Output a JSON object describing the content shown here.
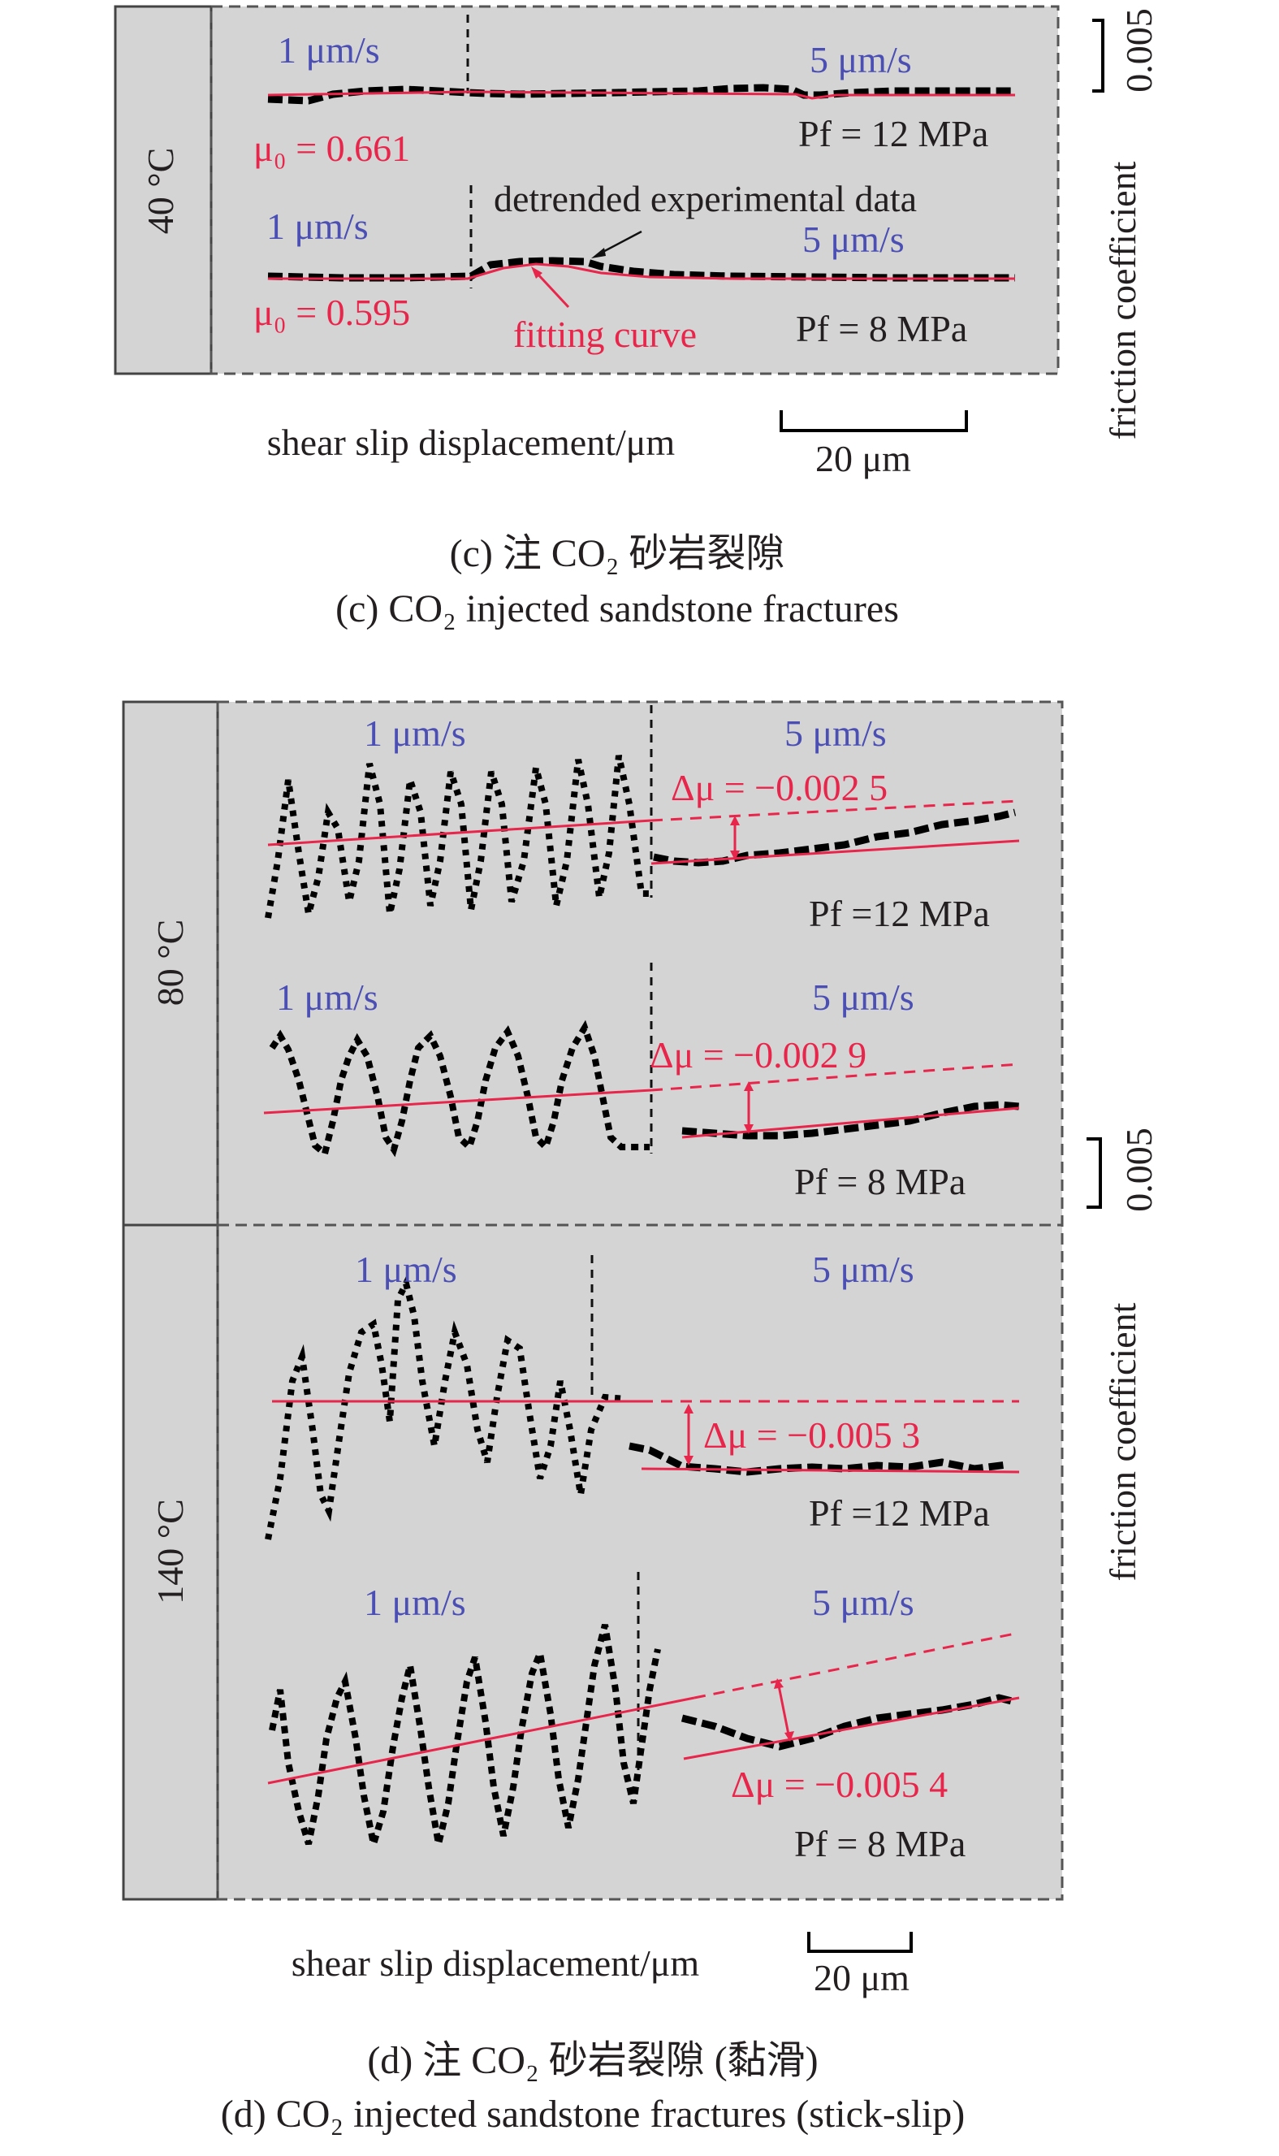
{
  "panel_c": {
    "temp_label": "40 °C",
    "caption_cn": "(c) 注 CO₂ 砂岩裂隙",
    "caption_en": "(c) CO₂ injected sandstone fractures",
    "x_axis_label": "shear slip displacement/μm",
    "y_axis_label": "friction coefficient",
    "y_scale_label": "0.005",
    "x_scale_label": "20 μm",
    "annotation_data": "detrended experimental data",
    "annotation_fit": "fitting curve",
    "rows": [
      {
        "v1": "1 μm/s",
        "v2": "5 μm/s",
        "mu0": "μ₀ = 0.661",
        "pf": "Pf = 12 MPa"
      },
      {
        "v1": "1 μm/s",
        "v2": "5 μm/s",
        "mu0": "μ₀ = 0.595",
        "pf": "Pf = 8 MPa"
      }
    ]
  },
  "panel_d": {
    "caption_cn": "(d) 注 CO₂ 砂岩裂隙 (黏滑)",
    "caption_en": "(d) CO₂ injected sandstone fractures (stick-slip)",
    "x_axis_label": "shear slip displacement/μm",
    "y_axis_label": "friction coefficient",
    "y_scale_label": "0.005",
    "x_scale_label": "20 μm",
    "groups": [
      {
        "temp_label": "80 °C",
        "rows": [
          {
            "v1": "1 μm/s",
            "v2": "5 μm/s",
            "delta": "Δμ = −0.002 5",
            "pf": "Pf =12 MPa"
          },
          {
            "v1": "1 μm/s",
            "v2": "5 μm/s",
            "delta": "Δμ = −0.002 9",
            "pf": "Pf = 8 MPa"
          }
        ]
      },
      {
        "temp_label": "140 °C",
        "rows": [
          {
            "v1": "1 μm/s",
            "v2": "5 μm/s",
            "delta": "Δμ = −0.005 3",
            "pf": "Pf =12 MPa"
          },
          {
            "v1": "1 μm/s",
            "v2": "5 μm/s",
            "delta": "Δμ = −0.005 4",
            "pf": "Pf = 8 MPa"
          }
        ]
      }
    ]
  },
  "colors": {
    "velocity_text": "#4b4fb4",
    "fit_curve": "#e8254a",
    "data": "#000000",
    "panel_background": "#d4d4d4"
  },
  "chart_data": [
    {
      "type": "line",
      "title": "(c) CO₂ injected sandstone fractures",
      "xlabel": "shear slip displacement/μm",
      "ylabel": "friction coefficient",
      "scale_bars": {
        "x": "20 μm",
        "y": 0.005
      },
      "series": [
        {
          "name": "40 °C, Pf = 12 MPa",
          "mu0": 0.661,
          "velocity_steps": [
            "1 μm/s",
            "5 μm/s"
          ]
        },
        {
          "name": "40 °C, Pf = 8 MPa",
          "mu0": 0.595,
          "velocity_steps": [
            "1 μm/s",
            "5 μm/s"
          ]
        }
      ]
    },
    {
      "type": "line",
      "title": "(d) CO₂ injected sandstone fractures (stick-slip)",
      "xlabel": "shear slip displacement/μm",
      "ylabel": "friction coefficient",
      "scale_bars": {
        "x": "20 μm",
        "y": 0.005
      },
      "series": [
        {
          "name": "80 °C, Pf = 12 MPa",
          "delta_mu": -0.0025,
          "velocity_steps": [
            "1 μm/s",
            "5 μm/s"
          ]
        },
        {
          "name": "80 °C, Pf = 8 MPa",
          "delta_mu": -0.0029,
          "velocity_steps": [
            "1 μm/s",
            "5 μm/s"
          ]
        },
        {
          "name": "140 °C, Pf = 12 MPa",
          "delta_mu": -0.0053,
          "velocity_steps": [
            "1 μm/s",
            "5 μm/s"
          ]
        },
        {
          "name": "140 °C, Pf = 8 MPa",
          "delta_mu": -0.0054,
          "velocity_steps": [
            "1 μm/s",
            "5 μm/s"
          ]
        }
      ]
    }
  ]
}
